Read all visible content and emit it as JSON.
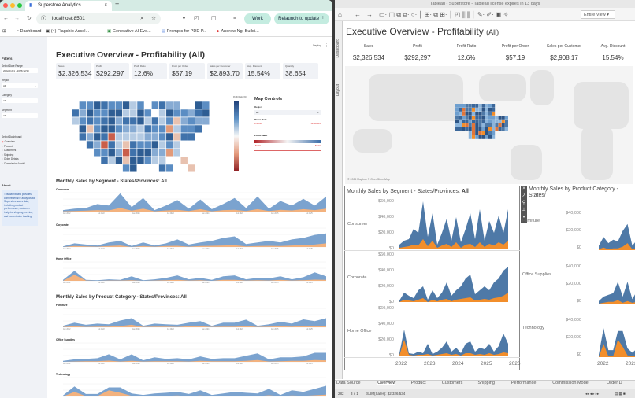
{
  "browser": {
    "tab_title": "Superstore Analytics",
    "url": "localhost:8501",
    "profile": "Work",
    "relaunch": "Relaunch to update",
    "bookmarks": [
      "Dashboard",
      "(4) Flagship Accel...",
      "Generative AI Eve...",
      "Prompts for PDD P...",
      "Andrew Ng: Buildi..."
    ]
  },
  "streamlit": {
    "deploy": "Deploy",
    "sidebar": {
      "filters": "Filters",
      "date_label": "Select Date Range",
      "date_value": "2022/01/01 - 2025/12/30",
      "region_label": "Region",
      "region_value": "All",
      "category_label": "Category",
      "category_value": "All",
      "segment_label": "Segment",
      "segment_value": "All",
      "dashboard_label": "Select Dashboard",
      "dashboards": [
        "Overview",
        "Product",
        "Customers",
        "Shipping",
        "Order Details",
        "Commission Model"
      ],
      "selected_dashboard": "Overview",
      "about_title": "About",
      "about_text": "This dashboard provides comprehensive analytics for Superstore sales data, including product performance, customer insights, shipping metrics, and commission tracking."
    },
    "title": "Executive Overview - Profitability (All)",
    "kpis": [
      {
        "label": "Sales",
        "value": "$2,326,534"
      },
      {
        "label": "Profit",
        "value": "$292,297"
      },
      {
        "label": "Profit Ratio",
        "value": "12.6%"
      },
      {
        "label": "Profit per Order",
        "value": "$57.19"
      },
      {
        "label": "Sales per Customer",
        "value": "$2,893.70"
      },
      {
        "label": "Avg. Discount",
        "value": "15.54%"
      },
      {
        "label": "Quantity",
        "value": "38,654"
      }
    ],
    "legend_title": "Profit Ratio (%)",
    "map_controls": {
      "title": "Map Controls",
      "region_label": "Region",
      "region_value": "All",
      "order_date_label": "Order Date",
      "date_min": "1/3/2022",
      "date_max": "12/30/2025",
      "profit_ratio_label": "Profit Ratio",
      "ratio_min": "-50.0%",
      "ratio_max": "50.0%"
    },
    "segment_title": "Monthly Sales by Segment - States/Provinces: All",
    "category_title": "Monthly Sales by Product Category - States/Provinces: All",
    "x_ticks": [
      "Jan 2022",
      "Jul 2022",
      "Jan 2023",
      "Jul 2023",
      "Jan 2024",
      "Jul 2024",
      "Jan 2025",
      "Jul 2025"
    ]
  },
  "tableau": {
    "window_title": "Tableau - Superstore - Tableau license expires in 13 days",
    "fit": "Entire View",
    "side_tabs": [
      "Dashboard",
      "Layout"
    ],
    "title": "Executive Overview - Profitability",
    "title_suffix": "(All)",
    "kpis": [
      {
        "label": "Sales",
        "value": "$2,326,534"
      },
      {
        "label": "Profit",
        "value": "$292,297"
      },
      {
        "label": "Profit Ratio",
        "value": "12.6%"
      },
      {
        "label": "Profit per Order",
        "value": "$57.19"
      },
      {
        "label": "Sales per Customer",
        "value": "$2,908.17"
      },
      {
        "label": "Avg. Discount",
        "value": "15.54%"
      }
    ],
    "map_credit": "© 2025 Mapbox © OpenStreetMap",
    "segment_title": "Monthly Sales by Segment - States/Provinces: ",
    "segment_title_bold": "All",
    "category_title": "Monthly Sales by Product Category - States/",
    "segment_axis": [
      "$60,000",
      "$40,000",
      "$20,000",
      "$0"
    ],
    "category_axis": [
      "$40,000",
      "$20,000",
      "$0"
    ],
    "years": [
      "2022",
      "2023",
      "2024",
      "2025",
      "2026"
    ],
    "sheets": [
      "Data Source",
      "Overview",
      "Product",
      "Customers",
      "Shipping",
      "Performance",
      "Commission Model",
      "Order D"
    ],
    "active_sheet": "Overview",
    "status": {
      "marks": "282",
      "grid": "3 x 1",
      "sum": "SUM(Sales): $2,326,534"
    }
  },
  "colors": {
    "sales_streamlit": "#7ba3cf",
    "profit_streamlit": "#f3b27e",
    "sales_tableau": "#4e79a7",
    "profit_tableau": "#f28e2b",
    "positive": "#2f6aa6",
    "negative": "#d9705a"
  },
  "chart_data": [
    {
      "type": "area",
      "name": "Consumer",
      "sales": [
        5,
        10,
        12,
        25,
        20,
        60,
        15,
        45,
        5,
        20,
        38,
        10,
        40,
        8,
        25,
        45,
        12,
        50,
        10,
        35,
        20,
        42,
        20,
        50
      ],
      "profit": [
        1,
        2,
        3,
        5,
        4,
        12,
        3,
        10,
        1,
        4,
        6,
        2,
        8,
        1,
        5,
        6,
        2,
        8,
        2,
        6,
        4,
        8,
        5,
        10
      ]
    },
    {
      "type": "area",
      "name": "Corporate",
      "sales": [
        2,
        12,
        8,
        5,
        15,
        20,
        3,
        15,
        5,
        12,
        25,
        8,
        15,
        20,
        30,
        35,
        10,
        15,
        20,
        15,
        25,
        30,
        40,
        45
      ],
      "profit": [
        0,
        3,
        2,
        1,
        3,
        5,
        0,
        3,
        1,
        3,
        4,
        1,
        3,
        4,
        5,
        6,
        2,
        3,
        4,
        3,
        5,
        6,
        8,
        12
      ]
    },
    {
      "type": "area",
      "name": "Home Office",
      "sales": [
        3,
        33,
        3,
        2,
        5,
        3,
        15,
        2,
        5,
        10,
        18,
        5,
        10,
        3,
        15,
        18,
        5,
        10,
        8,
        15,
        5,
        12,
        28,
        15
      ],
      "profit": [
        0,
        20,
        1,
        0,
        1,
        1,
        2,
        0,
        1,
        2,
        3,
        1,
        2,
        0,
        3,
        3,
        1,
        2,
        1,
        3,
        1,
        2,
        4,
        3
      ]
    },
    {
      "type": "area",
      "name": "Furniture",
      "sales": [
        5,
        15,
        8,
        12,
        10,
        22,
        30,
        5,
        12,
        10,
        8,
        15,
        20,
        5,
        15,
        15,
        25,
        5,
        10,
        18,
        12,
        26,
        20,
        30
      ],
      "profit": [
        1,
        3,
        1,
        2,
        2,
        4,
        8,
        1,
        2,
        2,
        1,
        3,
        3,
        1,
        2,
        2,
        4,
        1,
        2,
        3,
        2,
        4,
        3,
        5
      ]
    },
    {
      "type": "area",
      "name": "Office Supplies",
      "sales": [
        3,
        8,
        10,
        12,
        25,
        8,
        25,
        5,
        15,
        10,
        12,
        8,
        18,
        10,
        12,
        12,
        20,
        28,
        8,
        15,
        15,
        18,
        30,
        30
      ],
      "profit": [
        0,
        1,
        2,
        2,
        4,
        1,
        3,
        1,
        2,
        2,
        2,
        1,
        3,
        2,
        2,
        2,
        3,
        6,
        1,
        2,
        3,
        3,
        6,
        5
      ]
    },
    {
      "type": "area",
      "name": "Technology",
      "sales": [
        3,
        33,
        8,
        8,
        30,
        30,
        10,
        5,
        10,
        12,
        15,
        8,
        20,
        5,
        10,
        15,
        12,
        10,
        25,
        5,
        20,
        15,
        25,
        35
      ],
      "profit": [
        0,
        15,
        1,
        1,
        20,
        12,
        2,
        1,
        2,
        2,
        3,
        1,
        3,
        1,
        2,
        2,
        2,
        1,
        4,
        1,
        3,
        2,
        4,
        6
      ]
    }
  ]
}
